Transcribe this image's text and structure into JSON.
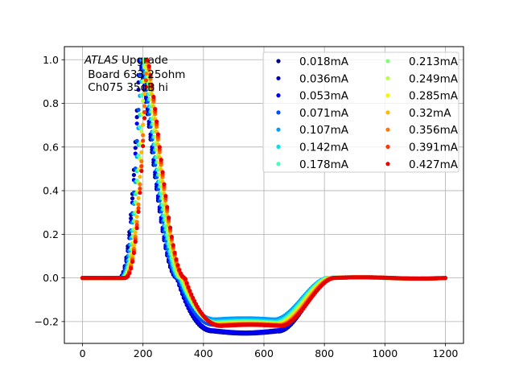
{
  "chart_data": {
    "type": "scatter",
    "title": "",
    "xlabel": "",
    "ylabel": "",
    "xlim": [
      -60,
      1260
    ],
    "ylim": [
      -0.3,
      1.06
    ],
    "x_ticks": [
      0,
      200,
      400,
      600,
      800,
      1000,
      1200
    ],
    "y_ticks": [
      -0.2,
      0.0,
      0.2,
      0.4,
      0.6,
      0.8,
      1.0
    ],
    "x_tick_labels": [
      "0",
      "200",
      "400",
      "600",
      "800",
      "1000",
      "1200"
    ],
    "y_tick_labels": [
      "−0.2",
      "0.0",
      "0.2",
      "0.4",
      "0.6",
      "0.8",
      "1.0"
    ],
    "grid": true,
    "legend_placement": "top-right",
    "annotation": {
      "italic": "ATLAS",
      "line1_rest": " Upgrade",
      "line2": " Board 633 25ohm",
      "line3": " Ch075 35dB hi"
    },
    "x_range": [
      0,
      1200
    ],
    "x_step": 5,
    "series": [
      {
        "name": "0.018mA",
        "color": "#000080",
        "pulse_start": 120,
        "peak_x": 187,
        "undershoot": -0.245,
        "recovery_x": 665
      },
      {
        "name": "0.036mA",
        "color": "#0000b2",
        "pulse_start": 121,
        "peak_x": 188,
        "undershoot": -0.243,
        "recovery_x": 664
      },
      {
        "name": "0.053mA",
        "color": "#0000f1",
        "pulse_start": 122,
        "peak_x": 189,
        "undershoot": -0.24,
        "recovery_x": 662
      },
      {
        "name": "0.071mA",
        "color": "#0050ff",
        "pulse_start": 124,
        "peak_x": 192,
        "undershoot": -0.215,
        "recovery_x": 655
      },
      {
        "name": "0.107mA",
        "color": "#009cff",
        "pulse_start": 126,
        "peak_x": 195,
        "undershoot": -0.19,
        "recovery_x": 650
      },
      {
        "name": "0.142mA",
        "color": "#0ddcea",
        "pulse_start": 128,
        "peak_x": 198,
        "undershoot": -0.2,
        "recovery_x": 652
      },
      {
        "name": "0.178mA",
        "color": "#41ffb6",
        "pulse_start": 130,
        "peak_x": 200,
        "undershoot": -0.205,
        "recovery_x": 655
      },
      {
        "name": "0.213mA",
        "color": "#7dff7a",
        "pulse_start": 132,
        "peak_x": 203,
        "undershoot": -0.208,
        "recovery_x": 658
      },
      {
        "name": "0.249mA",
        "color": "#b9ff3d",
        "pulse_start": 134,
        "peak_x": 206,
        "undershoot": -0.21,
        "recovery_x": 660
      },
      {
        "name": "0.285mA",
        "color": "#f4f802",
        "pulse_start": 136,
        "peak_x": 208,
        "undershoot": -0.212,
        "recovery_x": 662
      },
      {
        "name": "0.32mA",
        "color": "#ffb900",
        "pulse_start": 137,
        "peak_x": 210,
        "undershoot": -0.214,
        "recovery_x": 665
      },
      {
        "name": "0.356mA",
        "color": "#ff7700",
        "pulse_start": 138,
        "peak_x": 212,
        "undershoot": -0.216,
        "recovery_x": 668
      },
      {
        "name": "0.391mA",
        "color": "#ff3800",
        "pulse_start": 139,
        "peak_x": 213,
        "undershoot": -0.218,
        "recovery_x": 670
      },
      {
        "name": "0.427mA",
        "color": "#e60000",
        "pulse_start": 140,
        "peak_x": 214,
        "undershoot": -0.22,
        "recovery_x": 672
      }
    ]
  }
}
